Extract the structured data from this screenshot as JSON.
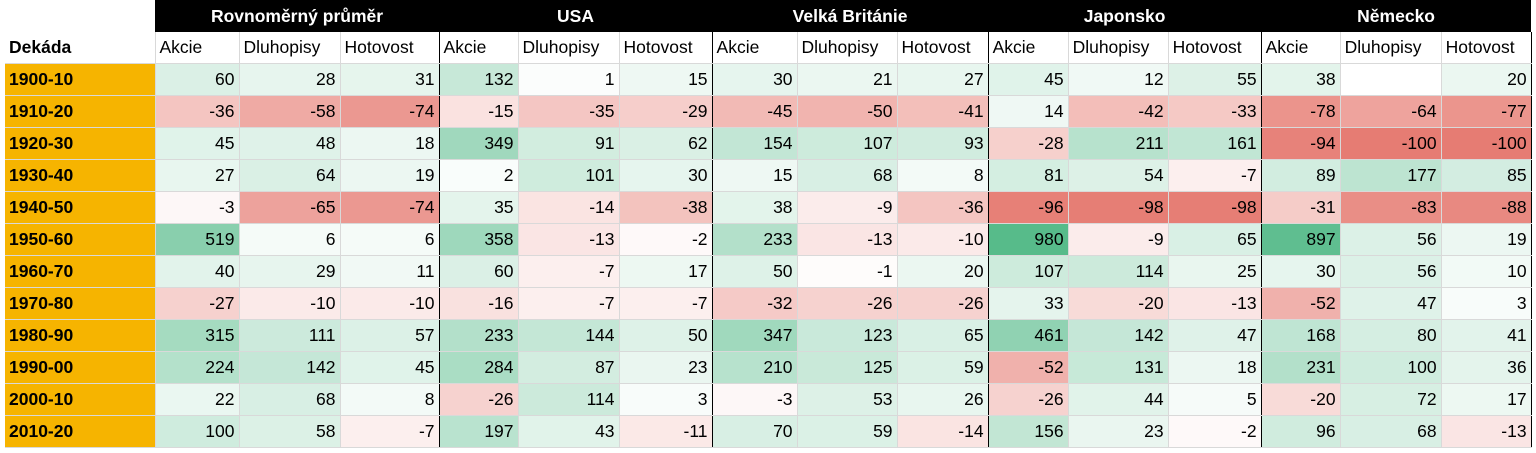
{
  "table": {
    "corner": "",
    "row_header": "Dekáda",
    "groups": [
      "Rovnoměrný průměr",
      "USA",
      "Velká Británie",
      "Japonsko",
      "Německo"
    ],
    "subheaders": [
      "Akcie",
      "Dluhopisy",
      "Hotovost"
    ],
    "rows": [
      {
        "label": "1900-10",
        "values": [
          60,
          28,
          31,
          132,
          1,
          15,
          30,
          21,
          27,
          45,
          12,
          55,
          38,
          null,
          20
        ]
      },
      {
        "label": "1910-20",
        "values": [
          -36,
          -58,
          -74,
          -15,
          -35,
          -29,
          -45,
          -50,
          -41,
          14,
          -42,
          -33,
          -78,
          -64,
          -77
        ]
      },
      {
        "label": "1920-30",
        "values": [
          45,
          48,
          18,
          349,
          91,
          62,
          154,
          107,
          93,
          -28,
          211,
          161,
          -94,
          -100,
          -100
        ]
      },
      {
        "label": "1930-40",
        "values": [
          27,
          64,
          19,
          2,
          101,
          30,
          15,
          68,
          8,
          81,
          54,
          -7,
          89,
          177,
          85
        ]
      },
      {
        "label": "1940-50",
        "values": [
          -3,
          -65,
          -74,
          35,
          -14,
          -38,
          38,
          -9,
          -36,
          -96,
          -98,
          -98,
          -31,
          -83,
          -88
        ]
      },
      {
        "label": "1950-60",
        "values": [
          519,
          6,
          6,
          358,
          -13,
          -2,
          233,
          -13,
          -10,
          980,
          -9,
          65,
          897,
          56,
          19
        ]
      },
      {
        "label": "1960-70",
        "values": [
          40,
          29,
          11,
          60,
          -7,
          17,
          50,
          -1,
          20,
          107,
          114,
          25,
          30,
          56,
          10
        ]
      },
      {
        "label": "1970-80",
        "values": [
          -27,
          -10,
          -10,
          -16,
          -7,
          -7,
          -32,
          -26,
          -26,
          33,
          -20,
          -13,
          -52,
          47,
          3
        ]
      },
      {
        "label": "1980-90",
        "values": [
          315,
          111,
          57,
          233,
          144,
          50,
          347,
          123,
          65,
          461,
          142,
          47,
          168,
          80,
          41
        ]
      },
      {
        "label": "1990-00",
        "values": [
          224,
          142,
          45,
          284,
          87,
          23,
          210,
          125,
          59,
          -52,
          131,
          18,
          231,
          100,
          36
        ]
      },
      {
        "label": "2000-10",
        "values": [
          22,
          68,
          8,
          -26,
          114,
          3,
          -3,
          53,
          26,
          -26,
          44,
          5,
          -20,
          72,
          17
        ]
      },
      {
        "label": "2010-20",
        "values": [
          100,
          58,
          -7,
          197,
          43,
          -11,
          70,
          59,
          -14,
          156,
          23,
          -2,
          96,
          68,
          -13
        ]
      }
    ]
  },
  "chart_data": {
    "type": "heatmap",
    "row_label": "Dekáda",
    "rows": [
      "1900-10",
      "1910-20",
      "1920-30",
      "1930-40",
      "1940-50",
      "1950-60",
      "1960-70",
      "1970-80",
      "1980-90",
      "1990-00",
      "2000-10",
      "2010-20"
    ],
    "column_groups": [
      "Rovnoměrný průměr",
      "USA",
      "Velká Británie",
      "Japonsko",
      "Německo"
    ],
    "columns": [
      "Akcie",
      "Dluhopisy",
      "Hotovost"
    ],
    "color_scale": {
      "negative": "#e67c73",
      "neutral": "#ffffff",
      "positive": "#57bb8a"
    }
  },
  "colors": {
    "header_bg": "#000000",
    "header_text": "#ffffff",
    "label_bg": "#f6b400",
    "negative": "#e67c73",
    "positive": "#57bb8a"
  }
}
